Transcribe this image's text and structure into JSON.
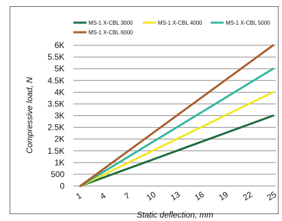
{
  "chart_data": {
    "type": "line",
    "xlabel": "Static deflection, mm",
    "ylabel": "Compressive load, N",
    "x_ticks": [
      "1",
      "4",
      "7",
      "10",
      "13",
      "16",
      "19",
      "22",
      "25"
    ],
    "x_range": [
      1,
      25
    ],
    "y_ticks": [
      "0",
      "500",
      "1K",
      "1.5K",
      "2K",
      "2.5K",
      "3K",
      "3.5K",
      "4K",
      "4.5K",
      "5K",
      "5.5K",
      "6K"
    ],
    "ylim": [
      0,
      6000
    ],
    "grid": "horizontal",
    "legend_position": "top",
    "series": [
      {
        "name": "MS-1 X-CBL 3000",
        "color": "#1e6b3f",
        "x": [
          1,
          25
        ],
        "y": [
          0,
          3000
        ]
      },
      {
        "name": "MS-1 X-CBL 4000",
        "color": "#f2e629",
        "x": [
          1,
          25
        ],
        "y": [
          0,
          4000
        ]
      },
      {
        "name": "MS-1 X-CBL 5000",
        "color": "#36b6a0",
        "x": [
          1,
          25
        ],
        "y": [
          0,
          5000
        ]
      },
      {
        "name": "MS-1 X-CBL 6000",
        "color": "#a85e2e",
        "x": [
          1,
          25
        ],
        "y": [
          0,
          6000
        ]
      }
    ]
  }
}
